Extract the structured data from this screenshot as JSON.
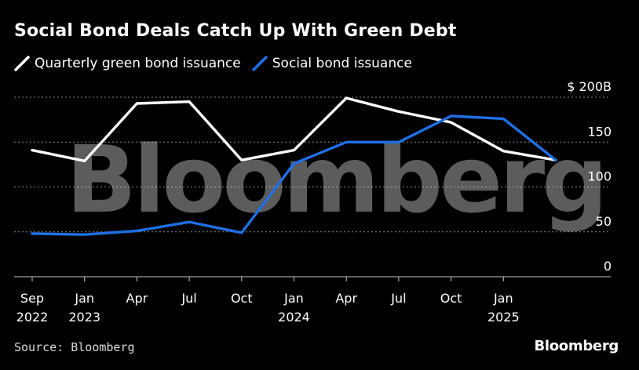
{
  "title": "Social Bond Deals Catch Up With Green Debt",
  "source": "Source: Bloomberg",
  "logo": "Bloomberg",
  "watermark": "Bloomberg",
  "colors": {
    "green_series": "#ffffff",
    "social_series": "#1f6fe5",
    "grid": "#8a8a8a"
  },
  "chart_data": {
    "type": "line",
    "title": "Social Bond Deals Catch Up With Green Debt",
    "xlabel": "",
    "ylabel": "",
    "ylim": [
      0,
      200
    ],
    "grid": true,
    "legend_position": "top-left",
    "x": [
      "2022-09",
      "2022-12",
      "2023-03",
      "2023-06",
      "2023-09",
      "2023-12",
      "2024-03",
      "2024-06",
      "2024-09",
      "2024-12",
      "2025-03"
    ],
    "x_ticks": [
      {
        "label": "Sep",
        "sub": "2022",
        "index": 0
      },
      {
        "label": "Jan",
        "sub": "2023",
        "index": 1
      },
      {
        "label": "Apr",
        "sub": "",
        "index": 2
      },
      {
        "label": "Jul",
        "sub": "",
        "index": 3
      },
      {
        "label": "Oct",
        "sub": "",
        "index": 4
      },
      {
        "label": "Jan",
        "sub": "2024",
        "index": 5
      },
      {
        "label": "Apr",
        "sub": "",
        "index": 6
      },
      {
        "label": "Jul",
        "sub": "",
        "index": 7
      },
      {
        "label": "Oct",
        "sub": "",
        "index": 8
      },
      {
        "label": "Jan",
        "sub": "2025",
        "index": 9
      }
    ],
    "y_ticks": [
      {
        "value": 200,
        "label": "$ 200B"
      },
      {
        "value": 150,
        "label": "150"
      },
      {
        "value": 100,
        "label": "100"
      },
      {
        "value": 50,
        "label": "50"
      },
      {
        "value": 0,
        "label": "0"
      }
    ],
    "series": [
      {
        "name": "Quarterly green bond issuance",
        "color": "#ffffff",
        "values": [
          141,
          129,
          193,
          195,
          130,
          141,
          199,
          184,
          172,
          140,
          130
        ]
      },
      {
        "name": "Social bond issuance",
        "color": "#1f6fe5",
        "values": [
          48,
          47,
          51,
          61,
          49,
          126,
          150,
          150,
          179,
          176,
          130
        ]
      }
    ]
  }
}
